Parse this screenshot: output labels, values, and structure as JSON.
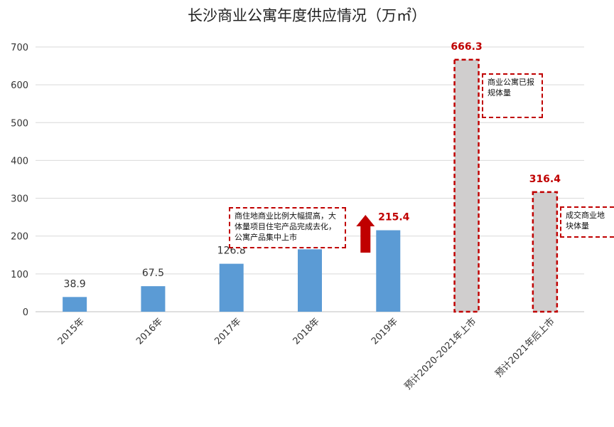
{
  "chart_data": {
    "type": "bar",
    "title": "长沙商业公寓年度供应情况（万㎡）",
    "categories": [
      "2015年",
      "2016年",
      "2017年",
      "2018年",
      "2019年",
      "预计2020-2021年上市",
      "预计2021年后上市"
    ],
    "values": [
      38.9,
      67.5,
      126.8,
      165.0,
      215.4,
      666.3,
      316.4
    ],
    "value_labels": [
      "38.9",
      "67.5",
      "126.8",
      "",
      "215.4",
      "666.3",
      "316.4"
    ],
    "ylim": [
      0,
      700
    ],
    "yticks": [
      0,
      100,
      200,
      300,
      400,
      500,
      600,
      700
    ],
    "grid": true,
    "xlabel": "",
    "ylabel": "",
    "annotations": [
      {
        "text": "商住地商业比例大幅提高，大体量项目住宅产品完成去化，公寓产品集中上市"
      },
      {
        "text": "商业公寓已报规体量"
      },
      {
        "text": "成交商业地块体量"
      }
    ]
  },
  "colors": {
    "bar": "#5b9bd5",
    "forecast_bar": "#d0cece",
    "highlight": "#c00000",
    "grid": "#d9d9d9",
    "axis_text": "#333333"
  }
}
